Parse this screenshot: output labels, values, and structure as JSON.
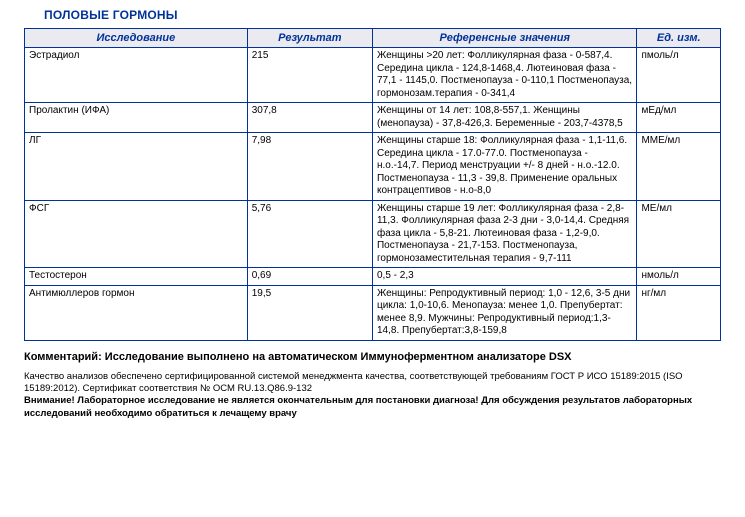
{
  "section_title": "ПОЛОВЫЕ ГОРМОНЫ",
  "columns": {
    "study": "Исследование",
    "result": "Результат",
    "ref": "Референсные значения",
    "unit": "Ед. изм."
  },
  "rows": [
    {
      "study": "Эстрадиол",
      "result": "215",
      "ref": "Женщины >20 лет: Фолликулярная фаза - 0-587,4. Середина цикла - 124,8-1468,4. Лютеиновая фаза - 77,1 - 1145,0. Постменопауза - 0-110,1 Постменопауза, гормонозам.терапия -  0-341,4",
      "unit": "пмоль/л"
    },
    {
      "study": "Пролактин (ИФА)",
      "result": "307,8",
      "ref": "Женщины от 14 лет: 108,8-557,1. Женщины (менопауза) - 37,8-426,3. Беременные - 203,7-4378,5",
      "unit": "мЕд/мл"
    },
    {
      "study": "ЛГ",
      "result": "7,98",
      "ref": "Женщины старше 18: Фолликулярная фаза - 1,1-11,6.  Середина цикла - 17.0-77.0.  Постменопауза -  н.о.-14,7.  Период менструации +/- 8 дней - н.о.-12.0.  Постменопауза - 11,3 - 39,8.  Применение оральных контрацептивов - н.о-8,0",
      "unit": "ММЕ/мл"
    },
    {
      "study": "ФСГ",
      "result": "5,76",
      "ref": "Женщины старше 19 лет: Фолликулярная фаза - 2,8-11,3. Фолликулярная фаза 2-3 дни - 3,0-14,4. Средняя фаза цикла - 5,8-21. Лютеиновая фаза - 1,2-9,0. Постменопауза - 21,7-153. Постменопауза, гормонозаместительная терапия - 9,7-111",
      "unit": "МЕ/мл"
    },
    {
      "study": "Тестостерон",
      "result": "0,69",
      "ref": " 0,5 - 2,3",
      "unit": "нмоль/л"
    },
    {
      "study": "Антимюллеров гормон",
      "result": "19,5",
      "ref": "Женщины: Репродуктивный период: 1,0 - 12,6,  3-5 дни цикла: 1,0-10,6. Менопауза: менее 1,0.  Препубертат: менее 8,9. Мужчины: Репродуктивный период:1,3-14,8. Препубертат:3,8-159,8",
      "unit": "нг/мл"
    }
  ],
  "comment": "Комментарий: Исследование выполнено на автоматическом  Иммуноферментном анализаторе DSX",
  "footer": {
    "line1": "Качество анализов обеспечено сертифицированной системой менеджмента качества, соответствующей требованиям ГОСТ Р ИСО 15189:2015 (ISO 15189:2012). Сертификат соответствия № ОСМ RU.13.Q86.9-132",
    "line2": "Внимание! Лабораторное исследование не является окончательным для постановки диагноза! Для обсуждения результатов лабораторных исследований необходимо обратиться к лечащему врачу"
  },
  "colors": {
    "header_text": "#003399",
    "border": "#003399",
    "header_bg": "#eaeaf0"
  }
}
